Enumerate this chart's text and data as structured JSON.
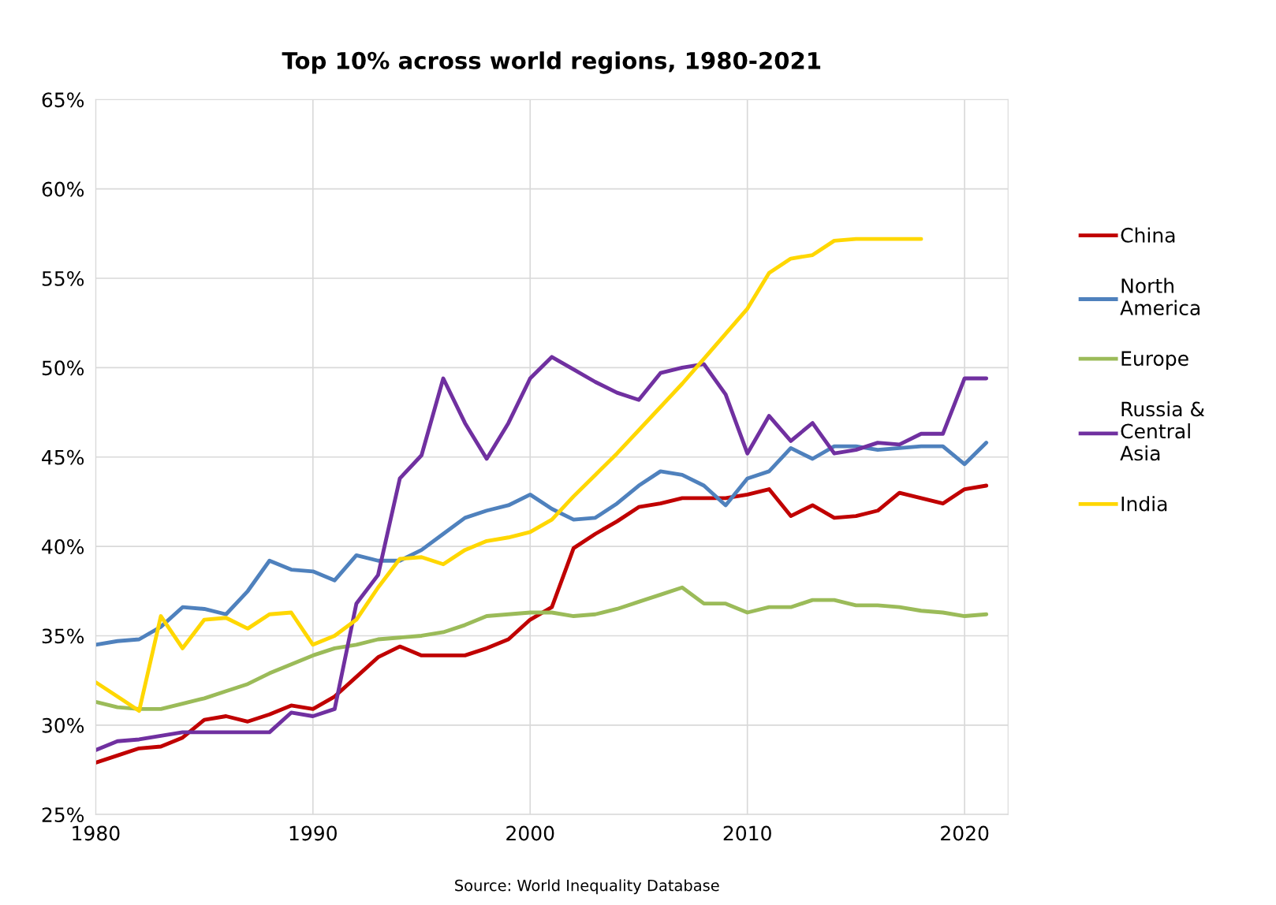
{
  "chart_data": {
    "type": "line",
    "title": "Top 10% across world regions, 1980-2021",
    "annotations": [
      "Source: World Inequality Database"
    ],
    "x": [
      1980,
      1981,
      1982,
      1983,
      1984,
      1985,
      1986,
      1987,
      1988,
      1989,
      1990,
      1991,
      1992,
      1993,
      1994,
      1995,
      1996,
      1997,
      1998,
      1999,
      2000,
      2001,
      2002,
      2003,
      2004,
      2005,
      2006,
      2007,
      2008,
      2009,
      2010,
      2011,
      2012,
      2013,
      2014,
      2015,
      2016,
      2017,
      2018,
      2019,
      2020,
      2021
    ],
    "series": [
      {
        "name": "China",
        "color": "#c00000",
        "values": [
          27.9,
          28.3,
          28.7,
          28.8,
          29.3,
          30.3,
          30.5,
          30.2,
          30.6,
          31.1,
          30.9,
          31.6,
          32.7,
          33.8,
          34.4,
          33.9,
          33.9,
          33.9,
          34.3,
          34.8,
          35.9,
          36.6,
          39.9,
          40.7,
          41.4,
          42.2,
          42.4,
          42.7,
          42.7,
          42.7,
          42.9,
          43.2,
          41.7,
          42.3,
          41.6,
          41.7,
          42.0,
          43.0,
          42.7,
          42.4,
          43.2,
          43.4
        ]
      },
      {
        "name": "North\nAmerica",
        "color": "#4f81bd",
        "values": [
          34.5,
          34.7,
          34.8,
          35.5,
          36.6,
          36.5,
          36.2,
          37.5,
          39.2,
          38.7,
          38.6,
          38.1,
          39.5,
          39.2,
          39.2,
          39.8,
          40.7,
          41.6,
          42.0,
          42.3,
          42.9,
          42.1,
          41.5,
          41.6,
          42.4,
          43.4,
          44.2,
          44.0,
          43.4,
          42.3,
          43.8,
          44.2,
          45.5,
          44.9,
          45.6,
          45.6,
          45.4,
          45.5,
          45.6,
          45.6,
          44.6,
          45.8
        ]
      },
      {
        "name": "Europe",
        "color": "#9bbb59",
        "values": [
          31.3,
          31.0,
          30.9,
          30.9,
          31.2,
          31.5,
          31.9,
          32.3,
          32.9,
          33.4,
          33.9,
          34.3,
          34.5,
          34.8,
          34.9,
          35.0,
          35.2,
          35.6,
          36.1,
          36.2,
          36.3,
          36.3,
          36.1,
          36.2,
          36.5,
          36.9,
          37.3,
          37.7,
          36.8,
          36.8,
          36.3,
          36.6,
          36.6,
          37.0,
          37.0,
          36.7,
          36.7,
          36.6,
          36.4,
          36.3,
          36.1,
          36.2
        ]
      },
      {
        "name": "Russia &\nCentral\nAsia",
        "color": "#7030a0",
        "values": [
          28.6,
          29.1,
          29.2,
          29.4,
          29.6,
          29.6,
          29.6,
          29.6,
          29.6,
          30.7,
          30.5,
          30.9,
          36.8,
          38.4,
          43.8,
          45.1,
          49.4,
          46.9,
          44.9,
          46.9,
          49.4,
          50.6,
          49.9,
          49.2,
          48.6,
          48.2,
          49.7,
          50.0,
          50.2,
          48.5,
          45.2,
          47.3,
          45.9,
          46.9,
          45.2,
          45.4,
          45.8,
          45.7,
          46.3,
          46.3,
          49.4,
          49.4
        ]
      },
      {
        "name": "India",
        "color": "#ffd700",
        "values": [
          32.4,
          31.6,
          30.8,
          36.1,
          34.3,
          35.9,
          36.0,
          35.4,
          36.2,
          36.3,
          34.5,
          35.0,
          35.9,
          37.7,
          39.3,
          39.4,
          39.0,
          39.8,
          40.3,
          40.5,
          40.8,
          41.5,
          42.8,
          44.0,
          45.2,
          46.5,
          47.8,
          49.1,
          50.5,
          51.9,
          53.3,
          55.3,
          56.1,
          56.3,
          57.1,
          57.2,
          57.2,
          57.2,
          57.2,
          null,
          null,
          null
        ]
      }
    ],
    "xlim": [
      1980,
      2022
    ],
    "xticks": [
      1980,
      1990,
      2000,
      2010,
      2020
    ],
    "ylim": [
      25,
      65
    ],
    "yticks": [
      {
        "value": 25,
        "label": "25%"
      },
      {
        "value": 30,
        "label": "30%"
      },
      {
        "value": 35,
        "label": "35%"
      },
      {
        "value": 40,
        "label": "40%"
      },
      {
        "value": 45,
        "label": "45%"
      },
      {
        "value": 50,
        "label": "50%"
      },
      {
        "value": 55,
        "label": "55%"
      },
      {
        "value": 60,
        "label": "60%"
      },
      {
        "value": 65,
        "label": "65%"
      }
    ],
    "grid": true,
    "legend": "right",
    "line_style": "solid",
    "marker": "none"
  }
}
